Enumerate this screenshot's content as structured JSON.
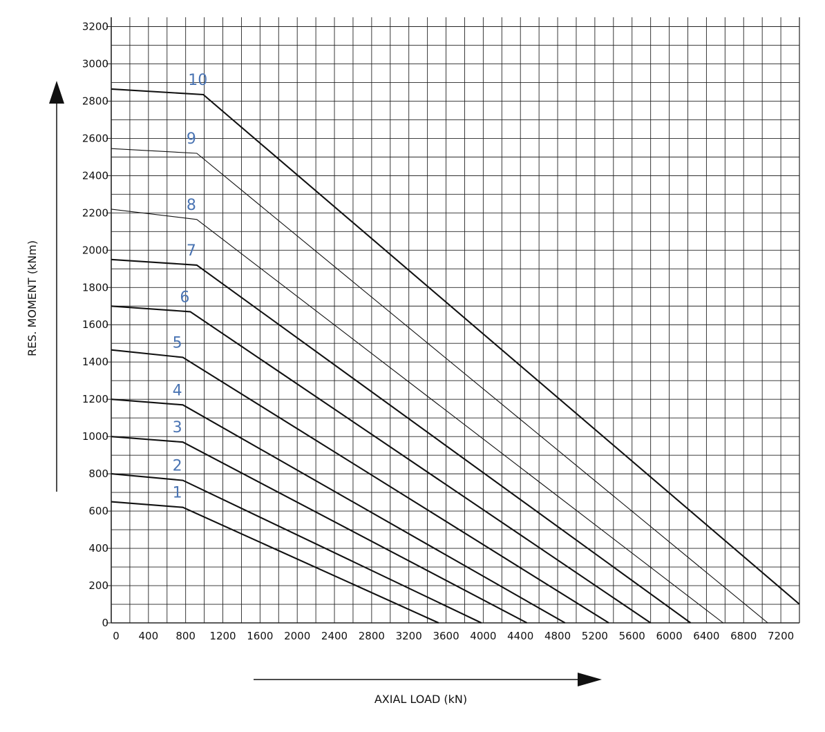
{
  "chart_data": {
    "type": "line",
    "xlabel": "AXIAL LOAD (kN)",
    "ylabel": "RES. MOMENT (kNm)",
    "xlim": [
      0,
      7400
    ],
    "ylim": [
      0,
      3250
    ],
    "x_ticks": [
      "0",
      "400",
      "800",
      "1200",
      "1600",
      "2000",
      "2400",
      "2800",
      "3200",
      "3600",
      "4000",
      "4400",
      "4800",
      "5200",
      "5600",
      "6000",
      "6400",
      "6800",
      "7200"
    ],
    "y_ticks": [
      "0",
      "200",
      "400",
      "600",
      "800",
      "1000",
      "1200",
      "1400",
      "1600",
      "1800",
      "2000",
      "2200",
      "2400",
      "2600",
      "2800",
      "3000",
      "3200"
    ],
    "grid": true,
    "label_color": "#4a74b3",
    "series": [
      {
        "name": "1",
        "points": [
          [
            0,
            650
          ],
          [
            770,
            620
          ],
          [
            3520,
            0
          ]
        ]
      },
      {
        "name": "2",
        "points": [
          [
            0,
            800
          ],
          [
            770,
            765
          ],
          [
            3980,
            0
          ]
        ]
      },
      {
        "name": "3",
        "points": [
          [
            0,
            1000
          ],
          [
            770,
            970
          ],
          [
            4470,
            0
          ]
        ]
      },
      {
        "name": "4",
        "points": [
          [
            0,
            1200
          ],
          [
            770,
            1170
          ],
          [
            4880,
            0
          ]
        ]
      },
      {
        "name": "5",
        "points": [
          [
            0,
            1465
          ],
          [
            770,
            1425
          ],
          [
            5350,
            0
          ]
        ]
      },
      {
        "name": "6",
        "points": [
          [
            0,
            1700
          ],
          [
            850,
            1670
          ],
          [
            5800,
            0
          ]
        ]
      },
      {
        "name": "7",
        "points": [
          [
            0,
            1950
          ],
          [
            920,
            1920
          ],
          [
            6230,
            0
          ]
        ]
      },
      {
        "name": "8",
        "points": [
          [
            0,
            2220
          ],
          [
            920,
            2165
          ],
          [
            6580,
            0
          ]
        ]
      },
      {
        "name": "9",
        "points": [
          [
            0,
            2545
          ],
          [
            920,
            2520
          ],
          [
            7060,
            0
          ]
        ]
      },
      {
        "name": "10",
        "points": [
          [
            0,
            2865
          ],
          [
            990,
            2835
          ],
          [
            7400,
            100
          ]
        ]
      }
    ]
  }
}
